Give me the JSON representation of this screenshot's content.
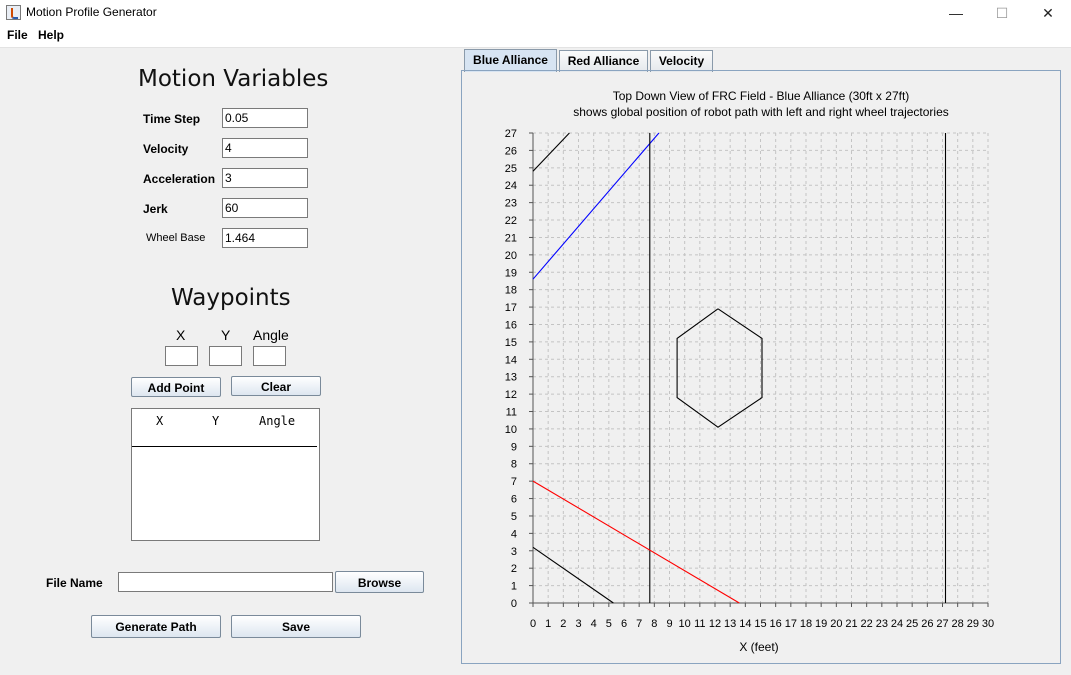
{
  "window": {
    "title": "Motion Profile Generator",
    "minimize": "—",
    "maximize": "☐",
    "close": "✕"
  },
  "menu": {
    "file": "File",
    "help": "Help"
  },
  "motion_variables": {
    "title": "Motion Variables",
    "fields": [
      {
        "label": "Time Step",
        "value": "0.05"
      },
      {
        "label": "Velocity",
        "value": "4"
      },
      {
        "label": "Acceleration",
        "value": "3"
      },
      {
        "label": "Jerk",
        "value": "60"
      },
      {
        "label": "Wheel Base",
        "value": "1.464"
      }
    ]
  },
  "waypoints": {
    "title": "Waypoints",
    "x_label": "X",
    "y_label": "Y",
    "angle_label": "Angle",
    "add_point": "Add Point",
    "clear": "Clear",
    "table_headers": [
      "X",
      "Y",
      "Angle"
    ]
  },
  "file": {
    "label": "File Name",
    "value": "",
    "browse": "Browse"
  },
  "actions": {
    "generate": "Generate Path",
    "save": "Save"
  },
  "tabs": [
    "Blue Alliance",
    "Red Alliance",
    "Velocity"
  ],
  "active_tab": "Blue Alliance",
  "chart_data": {
    "type": "line",
    "title": "Top Down View of FRC Field - Blue Alliance (30ft x 27ft)",
    "subtitle": "shows global position of robot path with left and right wheel trajectories",
    "xlabel": "X (feet)",
    "ylabel": "",
    "xlim": [
      0,
      30
    ],
    "ylim": [
      0,
      27
    ],
    "x_ticks": [
      0,
      1,
      2,
      3,
      4,
      5,
      6,
      7,
      8,
      9,
      10,
      11,
      12,
      13,
      14,
      15,
      16,
      17,
      18,
      19,
      20,
      21,
      22,
      23,
      24,
      25,
      26,
      27,
      28,
      29,
      30
    ],
    "y_ticks": [
      0,
      1,
      2,
      3,
      4,
      5,
      6,
      7,
      8,
      9,
      10,
      11,
      12,
      13,
      14,
      15,
      16,
      17,
      18,
      19,
      20,
      21,
      22,
      23,
      24,
      25,
      26,
      27
    ],
    "grid": true,
    "series": [
      {
        "color": "#000000",
        "points": [
          [
            0,
            24.8
          ],
          [
            2.4,
            27
          ]
        ]
      },
      {
        "color": "#0000ff",
        "points": [
          [
            0,
            18.6
          ],
          [
            8.3,
            27
          ]
        ]
      },
      {
        "color": "#000000",
        "points": [
          [
            7.7,
            0
          ],
          [
            7.7,
            27
          ]
        ]
      },
      {
        "color": "#000000",
        "points": [
          [
            27.2,
            0
          ],
          [
            27.2,
            27
          ]
        ]
      },
      {
        "color": "#ff0000",
        "points": [
          [
            0,
            7.0
          ],
          [
            13.6,
            0
          ]
        ]
      },
      {
        "color": "#000000",
        "points": [
          [
            0,
            3.2
          ],
          [
            5.3,
            0
          ]
        ]
      },
      {
        "color": "#000000",
        "points": [
          [
            12.2,
            16.9
          ],
          [
            15.1,
            15.2
          ],
          [
            15.1,
            11.8
          ],
          [
            12.2,
            10.1
          ],
          [
            9.5,
            11.8
          ],
          [
            9.5,
            15.2
          ],
          [
            12.2,
            16.9
          ]
        ]
      }
    ]
  }
}
